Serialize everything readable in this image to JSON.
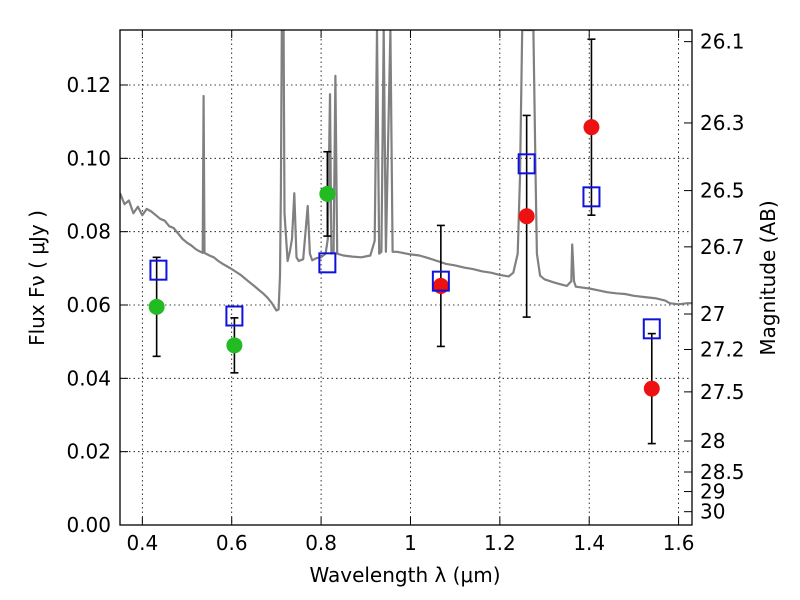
{
  "chart_data": {
    "type": "scatter",
    "xlabel": "Wavelength  λ (μm)",
    "ylabel": "Flux  Fν  ( μJy )",
    "ylabel_right": "Magnitude (AB)",
    "xlim": [
      0.35,
      1.63
    ],
    "ylim": [
      0.0,
      0.135
    ],
    "x_ticks": [
      0.4,
      0.6,
      0.8,
      1.0,
      1.2,
      1.4,
      1.6
    ],
    "x_tick_labels": [
      "0.4",
      "0.6",
      "0.8",
      "1",
      "1.2",
      "1.4",
      "1.6"
    ],
    "y_ticks": [
      0.0,
      0.02,
      0.04,
      0.06,
      0.08,
      0.1,
      0.12
    ],
    "y_tick_labels": [
      "0.00",
      "0.02",
      "0.04",
      "0.06",
      "0.08",
      "0.10",
      "0.12"
    ],
    "right_ticks": [
      {
        "label": "26.1",
        "mag": 26.1
      },
      {
        "label": "26.3",
        "mag": 26.3
      },
      {
        "label": "26.5",
        "mag": 26.5
      },
      {
        "label": "26.7",
        "mag": 26.7
      },
      {
        "label": "27",
        "mag": 27.0
      },
      {
        "label": "27.2",
        "mag": 27.2
      },
      {
        "label": "27.5",
        "mag": 27.5
      },
      {
        "label": "28",
        "mag": 28.0
      },
      {
        "label": "28.5",
        "mag": 28.5
      },
      {
        "label": "29",
        "mag": 29.0
      },
      {
        "label": "30",
        "mag": 30.0
      }
    ],
    "grid": true,
    "colors": {
      "model": "#808080",
      "green_points": "#22bb22",
      "red_points": "#ee1111",
      "model_photometry": "#1111dd",
      "errorbars": "#000000"
    },
    "series": [
      {
        "marker": "circle",
        "color": "#22bb22",
        "points": [
          {
            "x": 0.432,
            "y": 0.0595,
            "yerr": 0.0135
          },
          {
            "x": 0.606,
            "y": 0.049,
            "yerr": 0.0075
          },
          {
            "x": 0.814,
            "y": 0.0903,
            "yerr": 0.0115
          }
        ]
      },
      {
        "marker": "circle",
        "color": "#ee1111",
        "points": [
          {
            "x": 1.068,
            "y": 0.0652,
            "yerr": 0.0165
          },
          {
            "x": 1.26,
            "y": 0.0842,
            "yerr": 0.0275
          },
          {
            "x": 1.405,
            "y": 0.1085,
            "yerr": 0.024
          },
          {
            "x": 1.54,
            "y": 0.0372,
            "yerr": 0.015
          }
        ]
      },
      {
        "marker": "square-open",
        "color": "#1111dd",
        "points": [
          {
            "x": 0.436,
            "y": 0.0695
          },
          {
            "x": 0.606,
            "y": 0.057
          },
          {
            "x": 0.814,
            "y": 0.0715
          },
          {
            "x": 1.068,
            "y": 0.0665
          },
          {
            "x": 1.26,
            "y": 0.0985
          },
          {
            "x": 1.405,
            "y": 0.0895
          },
          {
            "x": 1.54,
            "y": 0.0535
          }
        ]
      }
    ],
    "model_spectrum": [
      [
        0.35,
        0.0905
      ],
      [
        0.36,
        0.0875
      ],
      [
        0.37,
        0.0885
      ],
      [
        0.38,
        0.085
      ],
      [
        0.39,
        0.0868
      ],
      [
        0.4,
        0.0845
      ],
      [
        0.41,
        0.0862
      ],
      [
        0.42,
        0.0855
      ],
      [
        0.43,
        0.0845
      ],
      [
        0.44,
        0.0835
      ],
      [
        0.45,
        0.083
      ],
      [
        0.46,
        0.0815
      ],
      [
        0.47,
        0.081
      ],
      [
        0.48,
        0.0795
      ],
      [
        0.49,
        0.078
      ],
      [
        0.5,
        0.077
      ],
      [
        0.51,
        0.0762
      ],
      [
        0.52,
        0.0752
      ],
      [
        0.53,
        0.0745
      ],
      [
        0.535,
        0.0742
      ],
      [
        0.537,
        0.117
      ],
      [
        0.539,
        0.0742
      ],
      [
        0.55,
        0.0735
      ],
      [
        0.56,
        0.073
      ],
      [
        0.57,
        0.072
      ],
      [
        0.58,
        0.0712
      ],
      [
        0.59,
        0.0705
      ],
      [
        0.6,
        0.0698
      ],
      [
        0.61,
        0.069
      ],
      [
        0.62,
        0.0682
      ],
      [
        0.63,
        0.0672
      ],
      [
        0.64,
        0.0662
      ],
      [
        0.65,
        0.0652
      ],
      [
        0.66,
        0.0642
      ],
      [
        0.67,
        0.0632
      ],
      [
        0.68,
        0.062
      ],
      [
        0.69,
        0.0605
      ],
      [
        0.7,
        0.0585
      ],
      [
        0.705,
        0.0588
      ],
      [
        0.708,
        0.068
      ],
      [
        0.71,
        0.0915
      ],
      [
        0.712,
        0.135
      ],
      [
        0.716,
        0.135
      ],
      [
        0.718,
        0.085
      ],
      [
        0.725,
        0.072
      ],
      [
        0.73,
        0.0745
      ],
      [
        0.735,
        0.078
      ],
      [
        0.74,
        0.0905
      ],
      [
        0.745,
        0.073
      ],
      [
        0.75,
        0.072
      ],
      [
        0.76,
        0.0725
      ],
      [
        0.77,
        0.087
      ],
      [
        0.775,
        0.074
      ],
      [
        0.78,
        0.0722
      ],
      [
        0.79,
        0.0728
      ],
      [
        0.8,
        0.073
      ],
      [
        0.81,
        0.074
      ],
      [
        0.815,
        0.078
      ],
      [
        0.82,
        0.1175
      ],
      [
        0.823,
        0.074
      ],
      [
        0.828,
        0.0745
      ],
      [
        0.832,
        0.1225
      ],
      [
        0.836,
        0.074
      ],
      [
        0.85,
        0.0735
      ],
      [
        0.87,
        0.0732
      ],
      [
        0.89,
        0.073
      ],
      [
        0.91,
        0.0735
      ],
      [
        0.92,
        0.0775
      ],
      [
        0.925,
        0.135
      ],
      [
        0.93,
        0.074
      ],
      [
        0.935,
        0.0745
      ],
      [
        0.94,
        0.135
      ],
      [
        0.945,
        0.0745
      ],
      [
        0.955,
        0.135
      ],
      [
        0.96,
        0.0745
      ],
      [
        0.97,
        0.0745
      ],
      [
        1.0,
        0.0738
      ],
      [
        1.02,
        0.0735
      ],
      [
        1.04,
        0.0728
      ],
      [
        1.06,
        0.072
      ],
      [
        1.08,
        0.0712
      ],
      [
        1.1,
        0.0708
      ],
      [
        1.12,
        0.0702
      ],
      [
        1.14,
        0.0698
      ],
      [
        1.16,
        0.0692
      ],
      [
        1.18,
        0.0688
      ],
      [
        1.2,
        0.0682
      ],
      [
        1.22,
        0.0678
      ],
      [
        1.23,
        0.0688
      ],
      [
        1.24,
        0.074
      ],
      [
        1.245,
        0.095
      ],
      [
        1.25,
        0.135
      ],
      [
        1.275,
        0.135
      ],
      [
        1.28,
        0.095
      ],
      [
        1.283,
        0.074
      ],
      [
        1.29,
        0.068
      ],
      [
        1.3,
        0.067
      ],
      [
        1.32,
        0.0662
      ],
      [
        1.34,
        0.0655
      ],
      [
        1.35,
        0.0652
      ],
      [
        1.36,
        0.0665
      ],
      [
        1.362,
        0.0765
      ],
      [
        1.366,
        0.0665
      ],
      [
        1.37,
        0.065
      ],
      [
        1.4,
        0.0645
      ],
      [
        1.42,
        0.064
      ],
      [
        1.44,
        0.0635
      ],
      [
        1.46,
        0.0632
      ],
      [
        1.48,
        0.063
      ],
      [
        1.5,
        0.0625
      ],
      [
        1.52,
        0.0622
      ],
      [
        1.55,
        0.0618
      ],
      [
        1.57,
        0.0612
      ],
      [
        1.58,
        0.0605
      ],
      [
        1.6,
        0.0602
      ],
      [
        1.62,
        0.0605
      ],
      [
        1.63,
        0.0605
      ]
    ]
  }
}
